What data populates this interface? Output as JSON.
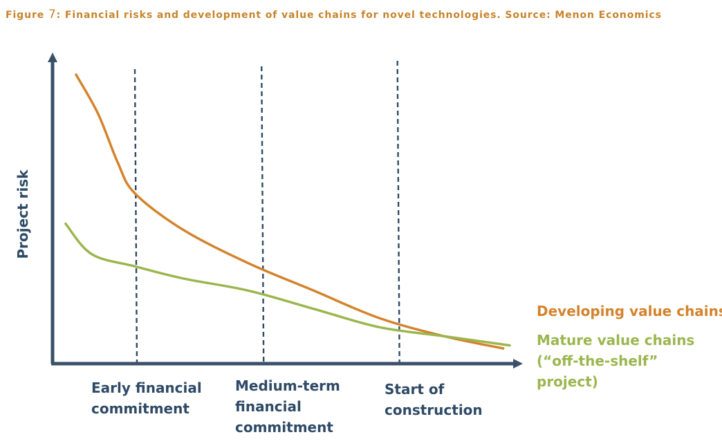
{
  "figure": {
    "prefix": "Figure ",
    "number": "7",
    "title": ": Financial risks and development of value chains for novel technologies. Source: Menon Economics"
  },
  "chart_data": {
    "type": "line",
    "ylabel": "Project risk",
    "categories": [
      [
        "Early financial",
        "commitment"
      ],
      [
        "Medium-term",
        "financial",
        "commitment"
      ],
      [
        "Start of",
        "construction"
      ]
    ],
    "series": [
      {
        "name": "Developing value chains",
        "label_lines": [
          "Developing value chains"
        ],
        "color": "#d4832c",
        "x": [
          0.18,
          0.35,
          0.5,
          0.63,
          1.0,
          1.5,
          2.0,
          2.5,
          3.0,
          3.45
        ],
        "y": [
          0.95,
          0.82,
          0.66,
          0.56,
          0.44,
          0.33,
          0.24,
          0.15,
          0.09,
          0.05
        ]
      },
      {
        "name": "Mature value chains",
        "label_lines": [
          "Mature value chains",
          "(“off-the-shelf”",
          "project)"
        ],
        "color": "#9bb64e",
        "x": [
          0.1,
          0.3,
          0.63,
          1.0,
          1.5,
          2.0,
          2.5,
          3.0,
          3.5
        ],
        "y": [
          0.46,
          0.36,
          0.32,
          0.28,
          0.24,
          0.18,
          0.12,
          0.09,
          0.06
        ]
      }
    ],
    "markers": [
      {
        "x": 0.63,
        "style": "dashed"
      },
      {
        "x": 1.6,
        "style": "dashed"
      },
      {
        "x": 2.64,
        "style": "dashed"
      }
    ],
    "xlim": [
      0,
      3.6
    ],
    "ylim": [
      0,
      1
    ],
    "grid": false,
    "legend": "right",
    "axis_color": "#3a5068"
  }
}
